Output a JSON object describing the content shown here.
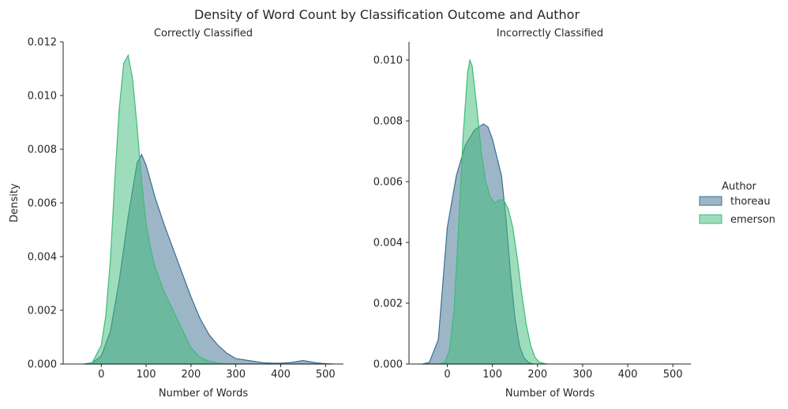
{
  "figure": {
    "title": "Density of Word Count by Classification Outcome and Author"
  },
  "legend": {
    "title": "Author",
    "placement": "right",
    "entries": [
      {
        "name": "thoreau",
        "color": "#3b6e8f"
      },
      {
        "name": "emerson",
        "color": "#3dbb78"
      }
    ]
  },
  "colors": {
    "thoreau_fill": "#3b6e8f",
    "emerson_fill": "#3dbb78",
    "overlap_fill": "#5fb59a",
    "axis": "#262626"
  },
  "chart_data": [
    {
      "type": "area",
      "subtype": "kde",
      "title": "Correctly Classified",
      "xlabel": "Number of Words",
      "ylabel": "Density",
      "xlim": [
        -85,
        540
      ],
      "ylim": [
        0,
        0.012
      ],
      "xticks": [
        0,
        100,
        200,
        300,
        400,
        500
      ],
      "yticks": [
        0.0,
        0.002,
        0.004,
        0.006,
        0.008,
        0.01,
        0.012
      ],
      "ytick_labels": [
        "0.000",
        "0.002",
        "0.004",
        "0.006",
        "0.008",
        "0.010",
        "0.012"
      ],
      "grid": false,
      "series": [
        {
          "name": "thoreau",
          "x": [
            -38,
            -20,
            0,
            20,
            40,
            60,
            80,
            90,
            100,
            120,
            140,
            160,
            180,
            200,
            220,
            240,
            260,
            280,
            300,
            320,
            340,
            360,
            380,
            400,
            420,
            440,
            450,
            460,
            480,
            500,
            515
          ],
          "y": [
            0,
            5e-05,
            0.0003,
            0.0012,
            0.0031,
            0.0055,
            0.0075,
            0.0078,
            0.0074,
            0.0062,
            0.0052,
            0.0043,
            0.0034,
            0.0025,
            0.0017,
            0.0011,
            0.0007,
            0.0004,
            0.0002,
            0.00015,
            0.0001,
            5e-05,
            3e-05,
            3e-05,
            5e-05,
            0.0001,
            0.00013,
            0.0001,
            4e-05,
            1e-05,
            0
          ]
        },
        {
          "name": "emerson",
          "x": [
            -38,
            -20,
            0,
            10,
            20,
            30,
            40,
            50,
            60,
            70,
            80,
            90,
            100,
            110,
            120,
            140,
            160,
            180,
            200,
            220,
            240,
            260,
            280,
            300
          ],
          "y": [
            0,
            5e-05,
            0.0007,
            0.0018,
            0.0038,
            0.0068,
            0.0095,
            0.0112,
            0.0115,
            0.0106,
            0.0088,
            0.0068,
            0.0052,
            0.0043,
            0.0036,
            0.0027,
            0.002,
            0.0013,
            0.0006,
            0.00025,
            0.0001,
            3e-05,
            1e-05,
            0
          ]
        }
      ]
    },
    {
      "type": "area",
      "subtype": "kde",
      "title": "Incorrectly Classified",
      "xlabel": "Number of Words",
      "ylabel": "",
      "xlim": [
        -85,
        540
      ],
      "ylim": [
        0,
        0.0106
      ],
      "xticks": [
        0,
        100,
        200,
        300,
        400,
        500
      ],
      "yticks": [
        0.0,
        0.002,
        0.004,
        0.006,
        0.008,
        0.01
      ],
      "ytick_labels": [
        "0.000",
        "0.002",
        "0.004",
        "0.006",
        "0.008",
        "0.010"
      ],
      "grid": false,
      "series": [
        {
          "name": "thoreau",
          "x": [
            -55,
            -40,
            -20,
            0,
            20,
            40,
            60,
            80,
            90,
            100,
            110,
            120,
            130,
            140,
            150,
            160,
            170,
            180,
            190
          ],
          "y": [
            0,
            5e-05,
            0.0008,
            0.0045,
            0.0062,
            0.0072,
            0.0077,
            0.0079,
            0.0078,
            0.0074,
            0.0068,
            0.0062,
            0.0048,
            0.003,
            0.0015,
            0.0006,
            0.0002,
            5e-05,
            0
          ]
        },
        {
          "name": "emerson",
          "x": [
            -20,
            -5,
            5,
            15,
            25,
            35,
            45,
            50,
            55,
            65,
            75,
            85,
            95,
            105,
            115,
            125,
            135,
            145,
            155,
            165,
            175,
            185,
            195,
            205,
            220
          ],
          "y": [
            0,
            5e-05,
            0.0005,
            0.0018,
            0.0045,
            0.0075,
            0.0096,
            0.01,
            0.0098,
            0.0085,
            0.007,
            0.006,
            0.0055,
            0.0053,
            0.0054,
            0.0054,
            0.0051,
            0.0045,
            0.0035,
            0.0023,
            0.0013,
            0.0006,
            0.0002,
            5e-05,
            0
          ]
        }
      ]
    }
  ]
}
